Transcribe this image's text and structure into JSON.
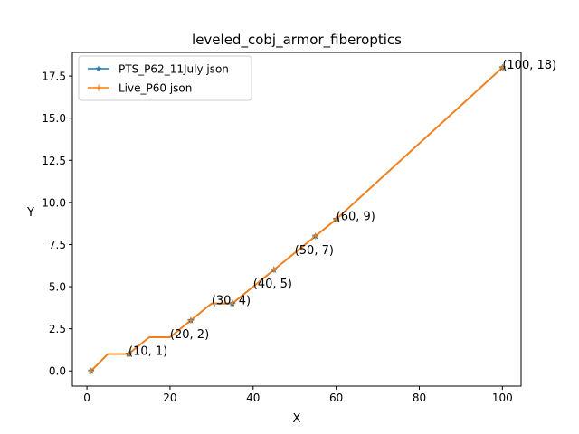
{
  "chart_data": {
    "type": "line",
    "title": "leveled_cobj_armor_fiberoptics",
    "xlabel": "X",
    "ylabel": "Y",
    "xlim": [
      -3.5,
      104.5
    ],
    "ylim": [
      -0.9,
      18.9
    ],
    "xticks": [
      0,
      20,
      40,
      60,
      80,
      100
    ],
    "yticks": [
      0.0,
      2.5,
      5.0,
      7.5,
      10.0,
      12.5,
      15.0,
      17.5
    ],
    "ytick_labels": [
      "0.0",
      "2.5",
      "5.0",
      "7.5",
      "10.0",
      "12.5",
      "15.0",
      "17.5"
    ],
    "grid": false,
    "legend_position": "upper left",
    "series": [
      {
        "name": "PTS_P62_11July json",
        "color": "#1f77b4",
        "marker": "star",
        "x": [
          1,
          5,
          10,
          15,
          20,
          25,
          30,
          35,
          40,
          45,
          50,
          55,
          60,
          100
        ],
        "y": [
          0,
          1,
          1,
          2,
          2,
          3,
          4,
          4,
          5,
          6,
          7,
          8,
          9,
          18
        ]
      },
      {
        "name": "Live_P60 json",
        "color": "#ff7f0e",
        "marker": "plus",
        "x": [
          1,
          5,
          10,
          15,
          20,
          25,
          30,
          35,
          40,
          45,
          50,
          55,
          60,
          100
        ],
        "y": [
          0,
          1,
          1,
          2,
          2,
          3,
          4,
          4,
          5,
          6,
          7,
          8,
          9,
          18
        ]
      }
    ],
    "markers": [
      {
        "x": 1,
        "y": 0
      },
      {
        "x": 10,
        "y": 1
      },
      {
        "x": 25,
        "y": 3
      },
      {
        "x": 35,
        "y": 4
      },
      {
        "x": 45,
        "y": 6
      },
      {
        "x": 55,
        "y": 8
      },
      {
        "x": 60,
        "y": 9
      },
      {
        "x": 100,
        "y": 18
      }
    ],
    "annotations": [
      {
        "text": "(10, 1)",
        "x": 10,
        "y": 1
      },
      {
        "text": "(20, 2)",
        "x": 20,
        "y": 2
      },
      {
        "text": "(30, 4)",
        "x": 30,
        "y": 4
      },
      {
        "text": "(40, 5)",
        "x": 40,
        "y": 5
      },
      {
        "text": "(50, 7)",
        "x": 50,
        "y": 7
      },
      {
        "text": "(60, 9)",
        "x": 60,
        "y": 9
      },
      {
        "text": "(100, 18)",
        "x": 100,
        "y": 18
      }
    ]
  }
}
